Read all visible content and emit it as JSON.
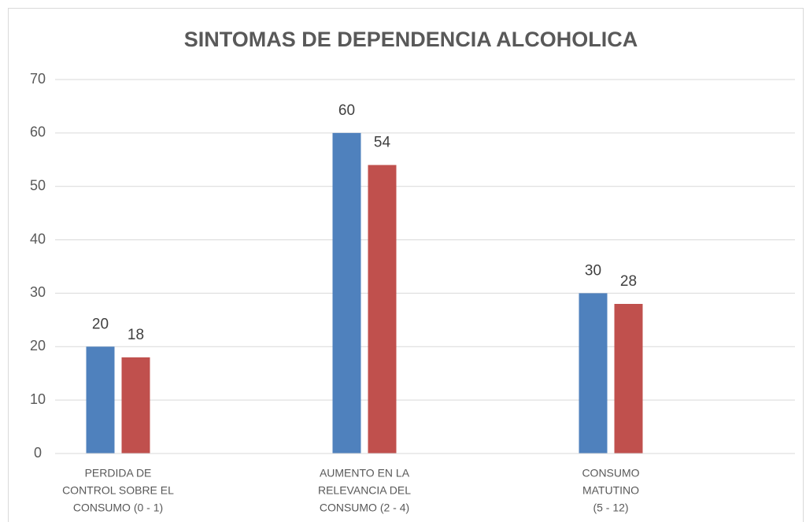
{
  "chart_data": {
    "type": "bar",
    "title": "SINTOMAS DE DEPENDENCIA ALCOHOLICA",
    "categories": [
      [
        "PERDIDA DE",
        "CONTROL SOBRE EL",
        "CONSUMO (0 - 1)"
      ],
      [
        "AUMENTO EN LA",
        "RELEVANCIA DEL",
        "CONSUMO (2 - 4)"
      ],
      [
        "CONSUMO",
        "MATUTINO",
        "(5 - 12)"
      ]
    ],
    "series": [
      {
        "color": "#4f81bd",
        "values": [
          20,
          60,
          30
        ]
      },
      {
        "color": "#c0504d",
        "values": [
          18,
          54,
          28
        ]
      }
    ],
    "ylim": [
      0,
      70
    ],
    "yticks": [
      0,
      10,
      20,
      30,
      40,
      50,
      60,
      70
    ],
    "grid": true
  }
}
